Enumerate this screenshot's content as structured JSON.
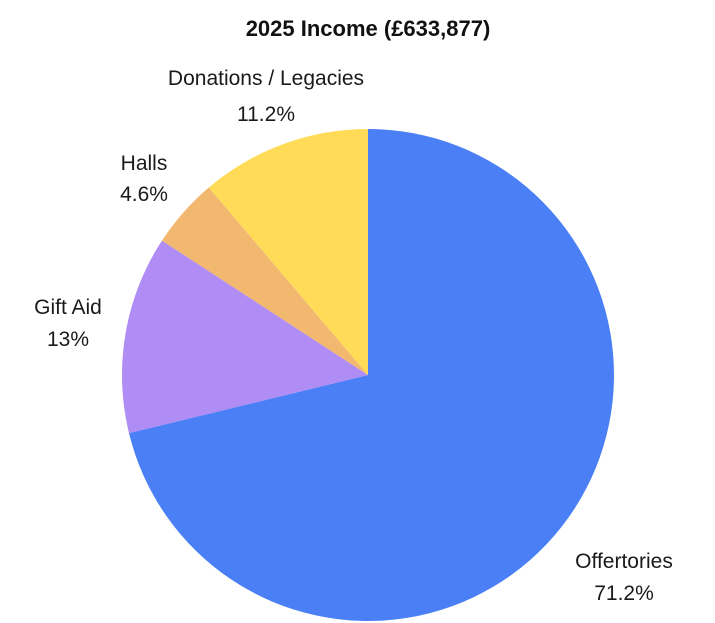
{
  "chart_data": {
    "type": "pie",
    "title": "2025 Income (£633,877)",
    "start_angle_deg": 0,
    "direction": "clockwise",
    "slices": [
      {
        "label": "Offertories",
        "value": 71.2,
        "display": "71.2%",
        "color": "#4a7ff5"
      },
      {
        "label": "Gift Aid",
        "value": 13.0,
        "display": "13%",
        "color": "#b08cf5"
      },
      {
        "label": "Halls",
        "value": 4.6,
        "display": "4.6%",
        "color": "#f2b870"
      },
      {
        "label": "Donations / Legacies",
        "value": 11.2,
        "display": "11.2%",
        "color": "#ffdb58"
      }
    ],
    "legend": "none"
  }
}
